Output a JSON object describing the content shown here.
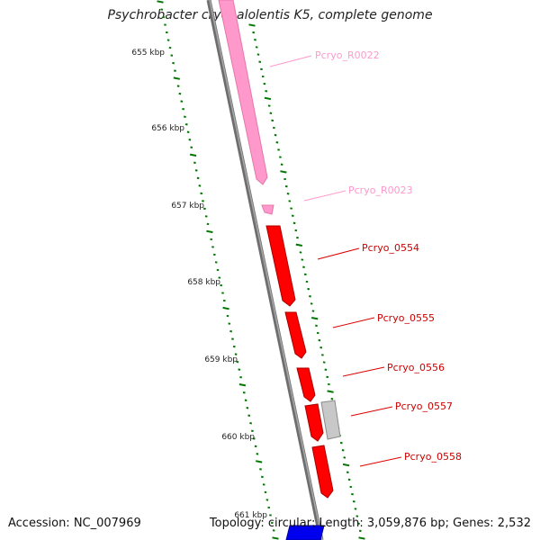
{
  "title": "Psychrobacter cryohalolentis K5, complete genome",
  "footer": {
    "accession": "Accession: NC_007969",
    "summary": "Topology: circular; Length: 3,059,876 bp; Genes: 2,532"
  },
  "colors": {
    "rna": "#ff99cc",
    "cds_forward": "#ff0000",
    "cds_other": "#c0c0c0",
    "cds_blue": "#0000ee",
    "backbone": "#808080",
    "ticks": "#007700"
  },
  "ruler": {
    "labels": [
      {
        "text": "655 kbp"
      },
      {
        "text": "656 kbp"
      },
      {
        "text": "657 kbp"
      },
      {
        "text": "658 kbp"
      },
      {
        "text": "659 kbp"
      },
      {
        "text": "660 kbp"
      },
      {
        "text": "661 kbp"
      }
    ]
  },
  "features": [
    {
      "label": "Pcryo_R0022",
      "type": "rna"
    },
    {
      "label": "Pcryo_R0023",
      "type": "rna"
    },
    {
      "label": "Pcryo_0554",
      "type": "cds"
    },
    {
      "label": "Pcryo_0555",
      "type": "cds"
    },
    {
      "label": "Pcryo_0556",
      "type": "cds"
    },
    {
      "label": "Pcryo_0557",
      "type": "cds"
    },
    {
      "label": "Pcryo_0558",
      "type": "cds"
    }
  ]
}
